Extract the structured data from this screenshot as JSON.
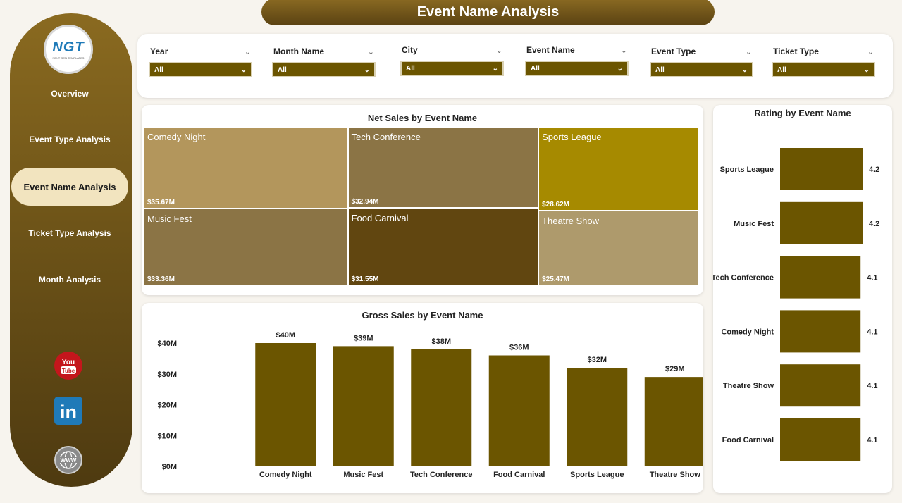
{
  "header": {
    "title": "Event Name Analysis"
  },
  "sidebar": {
    "logo": {
      "text": "NGT",
      "subtext": "NEXT GEN TEMPLATES"
    },
    "items": [
      {
        "label": "Overview",
        "active": false
      },
      {
        "label": "Event Type Analysis",
        "active": false
      },
      {
        "label": "Event Name Analysis",
        "active": true
      },
      {
        "label": "Ticket Type Analysis",
        "active": false
      },
      {
        "label": "Month Analysis",
        "active": false
      }
    ],
    "social": [
      {
        "icon": "youtube-icon",
        "text": "You Tube"
      },
      {
        "icon": "linkedin-icon",
        "text": "in"
      },
      {
        "icon": "globe-icon",
        "text": "WWW"
      }
    ]
  },
  "filters": [
    {
      "label": "Year",
      "value": "All"
    },
    {
      "label": "Month Name",
      "value": "All"
    },
    {
      "label": "City",
      "value": "All"
    },
    {
      "label": "Event Name",
      "value": "All"
    },
    {
      "label": "Event Type",
      "value": "All"
    },
    {
      "label": "Ticket Type",
      "value": "All"
    }
  ],
  "colors": {
    "accent": "#6b5500",
    "bar": "#6b5500",
    "treemap": [
      "#b3965c",
      "#8b7445",
      "#a68a00",
      "#8b7445",
      "#614610",
      "#ae9a6c"
    ]
  },
  "chart_data": [
    {
      "type": "treemap",
      "title": "Net Sales by Event Name",
      "items": [
        {
          "name": "Comedy Night",
          "value": 35.67,
          "label": "$35.67M"
        },
        {
          "name": "Tech Conference",
          "value": 32.94,
          "label": "$32.94M"
        },
        {
          "name": "Sports League",
          "value": 28.62,
          "label": "$28.62M"
        },
        {
          "name": "Music Fest",
          "value": 33.36,
          "label": "$33.36M"
        },
        {
          "name": "Food Carnival",
          "value": 31.55,
          "label": "$31.55M"
        },
        {
          "name": "Theatre Show",
          "value": 25.47,
          "label": "$25.47M"
        }
      ]
    },
    {
      "type": "bar",
      "title": "Gross Sales by Event Name",
      "categories": [
        "Comedy Night",
        "Music Fest",
        "Tech Conference",
        "Food Carnival",
        "Sports League",
        "Theatre Show"
      ],
      "values": [
        40,
        39,
        38,
        36,
        32,
        29
      ],
      "data_labels": [
        "$40M",
        "$39M",
        "$38M",
        "$36M",
        "$32M",
        "$29M"
      ],
      "yticks": [
        "$0M",
        "$10M",
        "$20M",
        "$30M",
        "$40M"
      ],
      "ylim": [
        0,
        40
      ],
      "unit": "M"
    },
    {
      "type": "bar",
      "orientation": "horizontal",
      "title": "Rating by Event Name",
      "categories": [
        "Sports League",
        "Music Fest",
        "Tech Conference",
        "Comedy Night",
        "Theatre Show",
        "Food Carnival"
      ],
      "values": [
        4.2,
        4.2,
        4.1,
        4.1,
        4.1,
        4.1
      ],
      "data_labels": [
        "4.2",
        "4.2",
        "4.1",
        "4.1",
        "4.1",
        "4.1"
      ]
    }
  ]
}
